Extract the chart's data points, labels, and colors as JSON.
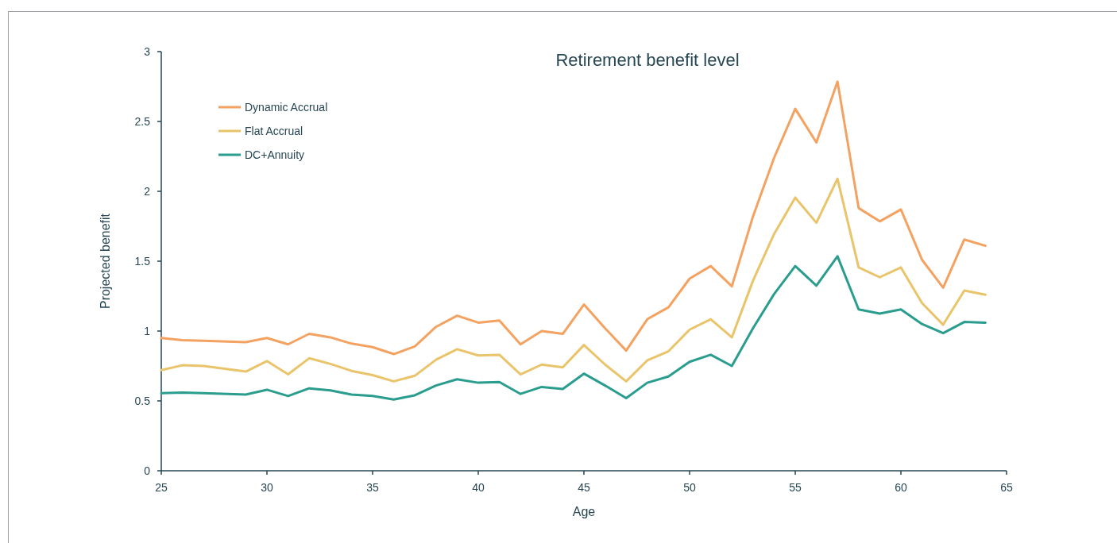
{
  "chart_data": {
    "type": "line",
    "title": "Retirement benefit level",
    "xlabel": "Age",
    "ylabel": "Projected benefit",
    "x": [
      25,
      26,
      27,
      29,
      30,
      31,
      32,
      33,
      34,
      35,
      36,
      37,
      38,
      39,
      40,
      41,
      42,
      43,
      44,
      45,
      46,
      47,
      48,
      49,
      50,
      51,
      52,
      53,
      54,
      55,
      56,
      57,
      58,
      59,
      60,
      61,
      62,
      63,
      64
    ],
    "series": [
      {
        "name": "Dynamic Accrual",
        "color": "#f4a261",
        "values": [
          0.95,
          0.935,
          0.93,
          0.92,
          0.95,
          0.905,
          0.98,
          0.955,
          0.91,
          0.885,
          0.835,
          0.89,
          1.03,
          1.11,
          1.06,
          1.075,
          0.905,
          1.0,
          0.98,
          1.19,
          1.02,
          0.86,
          1.085,
          1.17,
          1.375,
          1.465,
          1.32,
          1.82,
          2.24,
          2.59,
          2.35,
          2.785,
          1.88,
          1.785,
          1.87,
          1.51,
          1.31,
          1.655,
          1.61
        ]
      },
      {
        "name": "Flat Accrual",
        "color": "#e9c46a",
        "values": [
          0.72,
          0.755,
          0.75,
          0.71,
          0.785,
          0.69,
          0.805,
          0.765,
          0.715,
          0.685,
          0.64,
          0.68,
          0.795,
          0.87,
          0.825,
          0.83,
          0.69,
          0.76,
          0.74,
          0.9,
          0.76,
          0.64,
          0.79,
          0.855,
          1.01,
          1.085,
          0.955,
          1.36,
          1.695,
          1.955,
          1.775,
          2.09,
          1.455,
          1.385,
          1.455,
          1.2,
          1.045,
          1.29,
          1.26
        ]
      },
      {
        "name": "DC+Annuity",
        "color": "#2a9d8f",
        "values": [
          0.555,
          0.56,
          0.555,
          0.545,
          0.58,
          0.535,
          0.59,
          0.575,
          0.545,
          0.535,
          0.51,
          0.54,
          0.61,
          0.655,
          0.63,
          0.635,
          0.55,
          0.6,
          0.585,
          0.695,
          0.61,
          0.52,
          0.63,
          0.675,
          0.78,
          0.83,
          0.75,
          1.02,
          1.265,
          1.465,
          1.325,
          1.535,
          1.155,
          1.125,
          1.155,
          1.05,
          0.985,
          1.065,
          1.06
        ]
      }
    ],
    "xlim": [
      25,
      65
    ],
    "xticks": [
      25,
      30,
      35,
      40,
      45,
      50,
      55,
      60,
      65
    ],
    "ylim": [
      0,
      3
    ],
    "yticks": [
      0,
      0.5,
      1,
      1.5,
      2,
      2.5,
      3
    ],
    "grid": false,
    "legend": "top left",
    "marker": "none",
    "line_style": "solid"
  }
}
